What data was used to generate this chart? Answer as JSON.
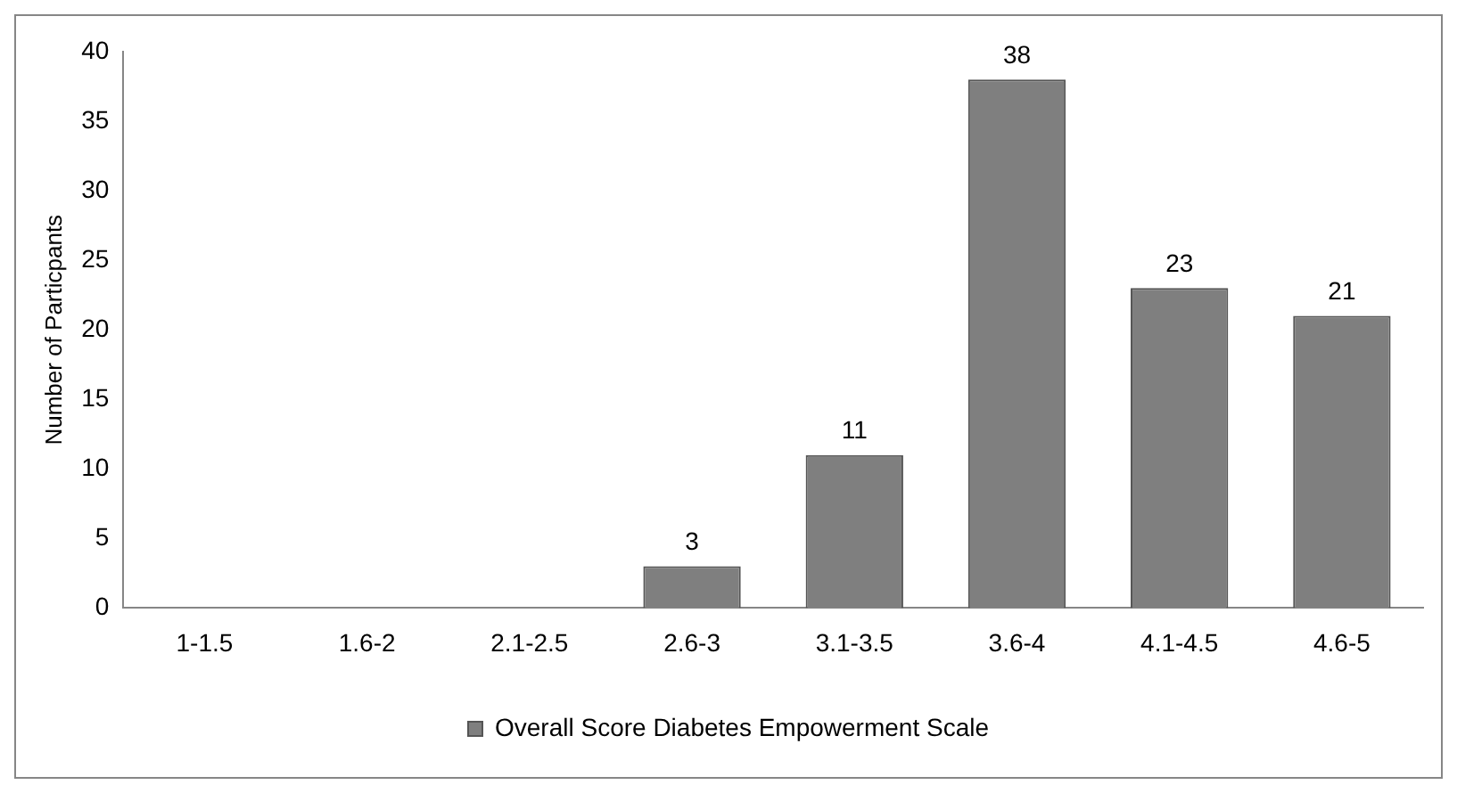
{
  "chart_data": {
    "type": "bar",
    "ylabel": "Number of Particpants",
    "categories": [
      "1-1.5",
      "1.6-2",
      "2.1-2.5",
      "2.6-3",
      "3.1-3.5",
      "3.6-4",
      "4.1-4.5",
      "4.6-5"
    ],
    "series": [
      {
        "name": "Overall Score Diabetes Empowerment Scale",
        "color": "#7f7f7f",
        "values": [
          0,
          0,
          0,
          3,
          11,
          38,
          23,
          21
        ],
        "value_labels": [
          null,
          null,
          null,
          "3",
          "11",
          "38",
          "23",
          "21"
        ]
      }
    ],
    "ylim": [
      0,
      40
    ],
    "yticks": [
      0,
      5,
      10,
      15,
      20,
      25,
      30,
      35,
      40
    ],
    "grid": false,
    "legend": "bottom"
  }
}
